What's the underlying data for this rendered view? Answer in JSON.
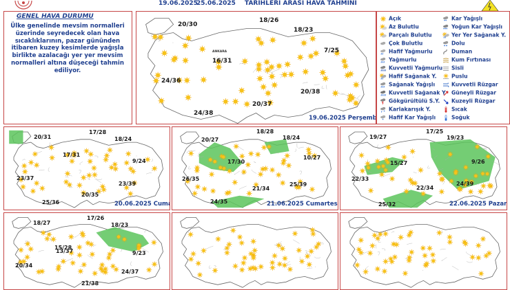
{
  "header": {
    "date_start": "19.06.2025",
    "date_end": "25.06.2025",
    "title": "TARIHLERI ARASI HAVA TAHMİNİ"
  },
  "general": {
    "title": "GENEL HAVA DURUMU",
    "text": "Ülke genelinde mevsim normalleri üzerinde seyredecek olan hava sıcaklıklarının, pazar gününden itibaren kuzey kesimlerde yağışla birlikte azalacağı yer yer mevsim normalleri altına düşeceği tahmin ediliyor."
  },
  "legend": {
    "left": [
      {
        "label": "Açık",
        "icon": "sun-icon"
      },
      {
        "label": "Az Bulutlu",
        "icon": "sun-small-cloud-icon"
      },
      {
        "label": "Parçalı Bulutlu",
        "icon": "partly-cloudy-icon"
      },
      {
        "label": "Çok Bulutlu",
        "icon": "cloud-icon"
      },
      {
        "label": "Hafif Yağmurlu",
        "icon": "light-rain-icon"
      },
      {
        "label": "Yağmurlu",
        "icon": "rain-icon"
      },
      {
        "label": "Kuvvetli Yağmurlu",
        "icon": "heavy-rain-icon"
      },
      {
        "label": "Hafif Sağanak Y.",
        "icon": "light-shower-icon"
      },
      {
        "label": "Sağanak Yağışlı",
        "icon": "shower-icon"
      },
      {
        "label": "Kuvvetli Sağanak Y",
        "icon": "heavy-shower-icon"
      },
      {
        "label": "Gökgürültülü S.Y.",
        "icon": "thunderstorm-icon"
      },
      {
        "label": "Karlakarışık Y.",
        "icon": "sleet-icon"
      },
      {
        "label": "Hafif Kar Yağışlı",
        "icon": "light-snow-icon"
      }
    ],
    "right": [
      {
        "label": "Kar Yağışlı",
        "icon": "snow-icon"
      },
      {
        "label": "Yoğun Kar Yağışlı",
        "icon": "heavy-snow-icon"
      },
      {
        "label": "Yer Yer Sağanak Y.",
        "icon": "local-shower-icon"
      },
      {
        "label": "Dolu",
        "icon": "hail-icon"
      },
      {
        "label": "Duman",
        "icon": "smoke-icon"
      },
      {
        "label": "Kum Fırtınası",
        "icon": "sandstorm-icon"
      },
      {
        "label": "Sisli",
        "icon": "fog-icon"
      },
      {
        "label": "Puslu",
        "icon": "haze-icon"
      },
      {
        "label": "Kuvvetli Rüzgar",
        "icon": "strong-wind-icon"
      },
      {
        "label": "Güneyli Rüzgar",
        "icon": "south-wind-icon"
      },
      {
        "label": "Kuzeyli Rüzgar",
        "icon": "north-wind-icon"
      },
      {
        "label": "Sıcak",
        "icon": "hot-thermometer-icon"
      },
      {
        "label": "Soğuk",
        "icon": "cold-thermometer-icon"
      }
    ]
  },
  "colors": {
    "border": "#c64545",
    "text_blue": "#1f3f8f",
    "sun": "#f5b81a",
    "rain_area": "#5cc45c",
    "map_outline": "#666666"
  },
  "main_map": {
    "date_label": "19.06.2025 Perşembe",
    "cities": [
      "ANKARA"
    ],
    "temps": [
      "20/30",
      "18/26",
      "18/23",
      "7/25",
      "16/31",
      "24/36",
      "20/38",
      "20/37",
      "24/38"
    ]
  },
  "panels": [
    {
      "date_label": "20.06.2025 Cuma",
      "temps": [
        "17/28",
        "20/31",
        "18/24",
        "17/31",
        "9/24",
        "23/37",
        "23/39",
        "20/35",
        "25/36"
      ]
    },
    {
      "date_label": "21.06.2025 Cumartesi",
      "temps": [
        "18/28",
        "20/27",
        "18/24",
        "17/30",
        "10/27",
        "26/35",
        "21/34",
        "25/39",
        "24/35"
      ]
    },
    {
      "date_label": "22.06.2025 Pazar",
      "temps": [
        "17/25",
        "19/27",
        "19/23",
        "15/27",
        "9/26",
        "22/33",
        "22/34",
        "24/39",
        "25/32"
      ]
    },
    {
      "date_label": "",
      "temps": [
        "17/26",
        "18/27",
        "18/23",
        "15/28",
        "9/23",
        "20/34",
        "13/37",
        "24/37",
        "21/38"
      ]
    },
    {
      "date_label": "",
      "temps": []
    },
    {
      "date_label": "",
      "temps": []
    }
  ]
}
